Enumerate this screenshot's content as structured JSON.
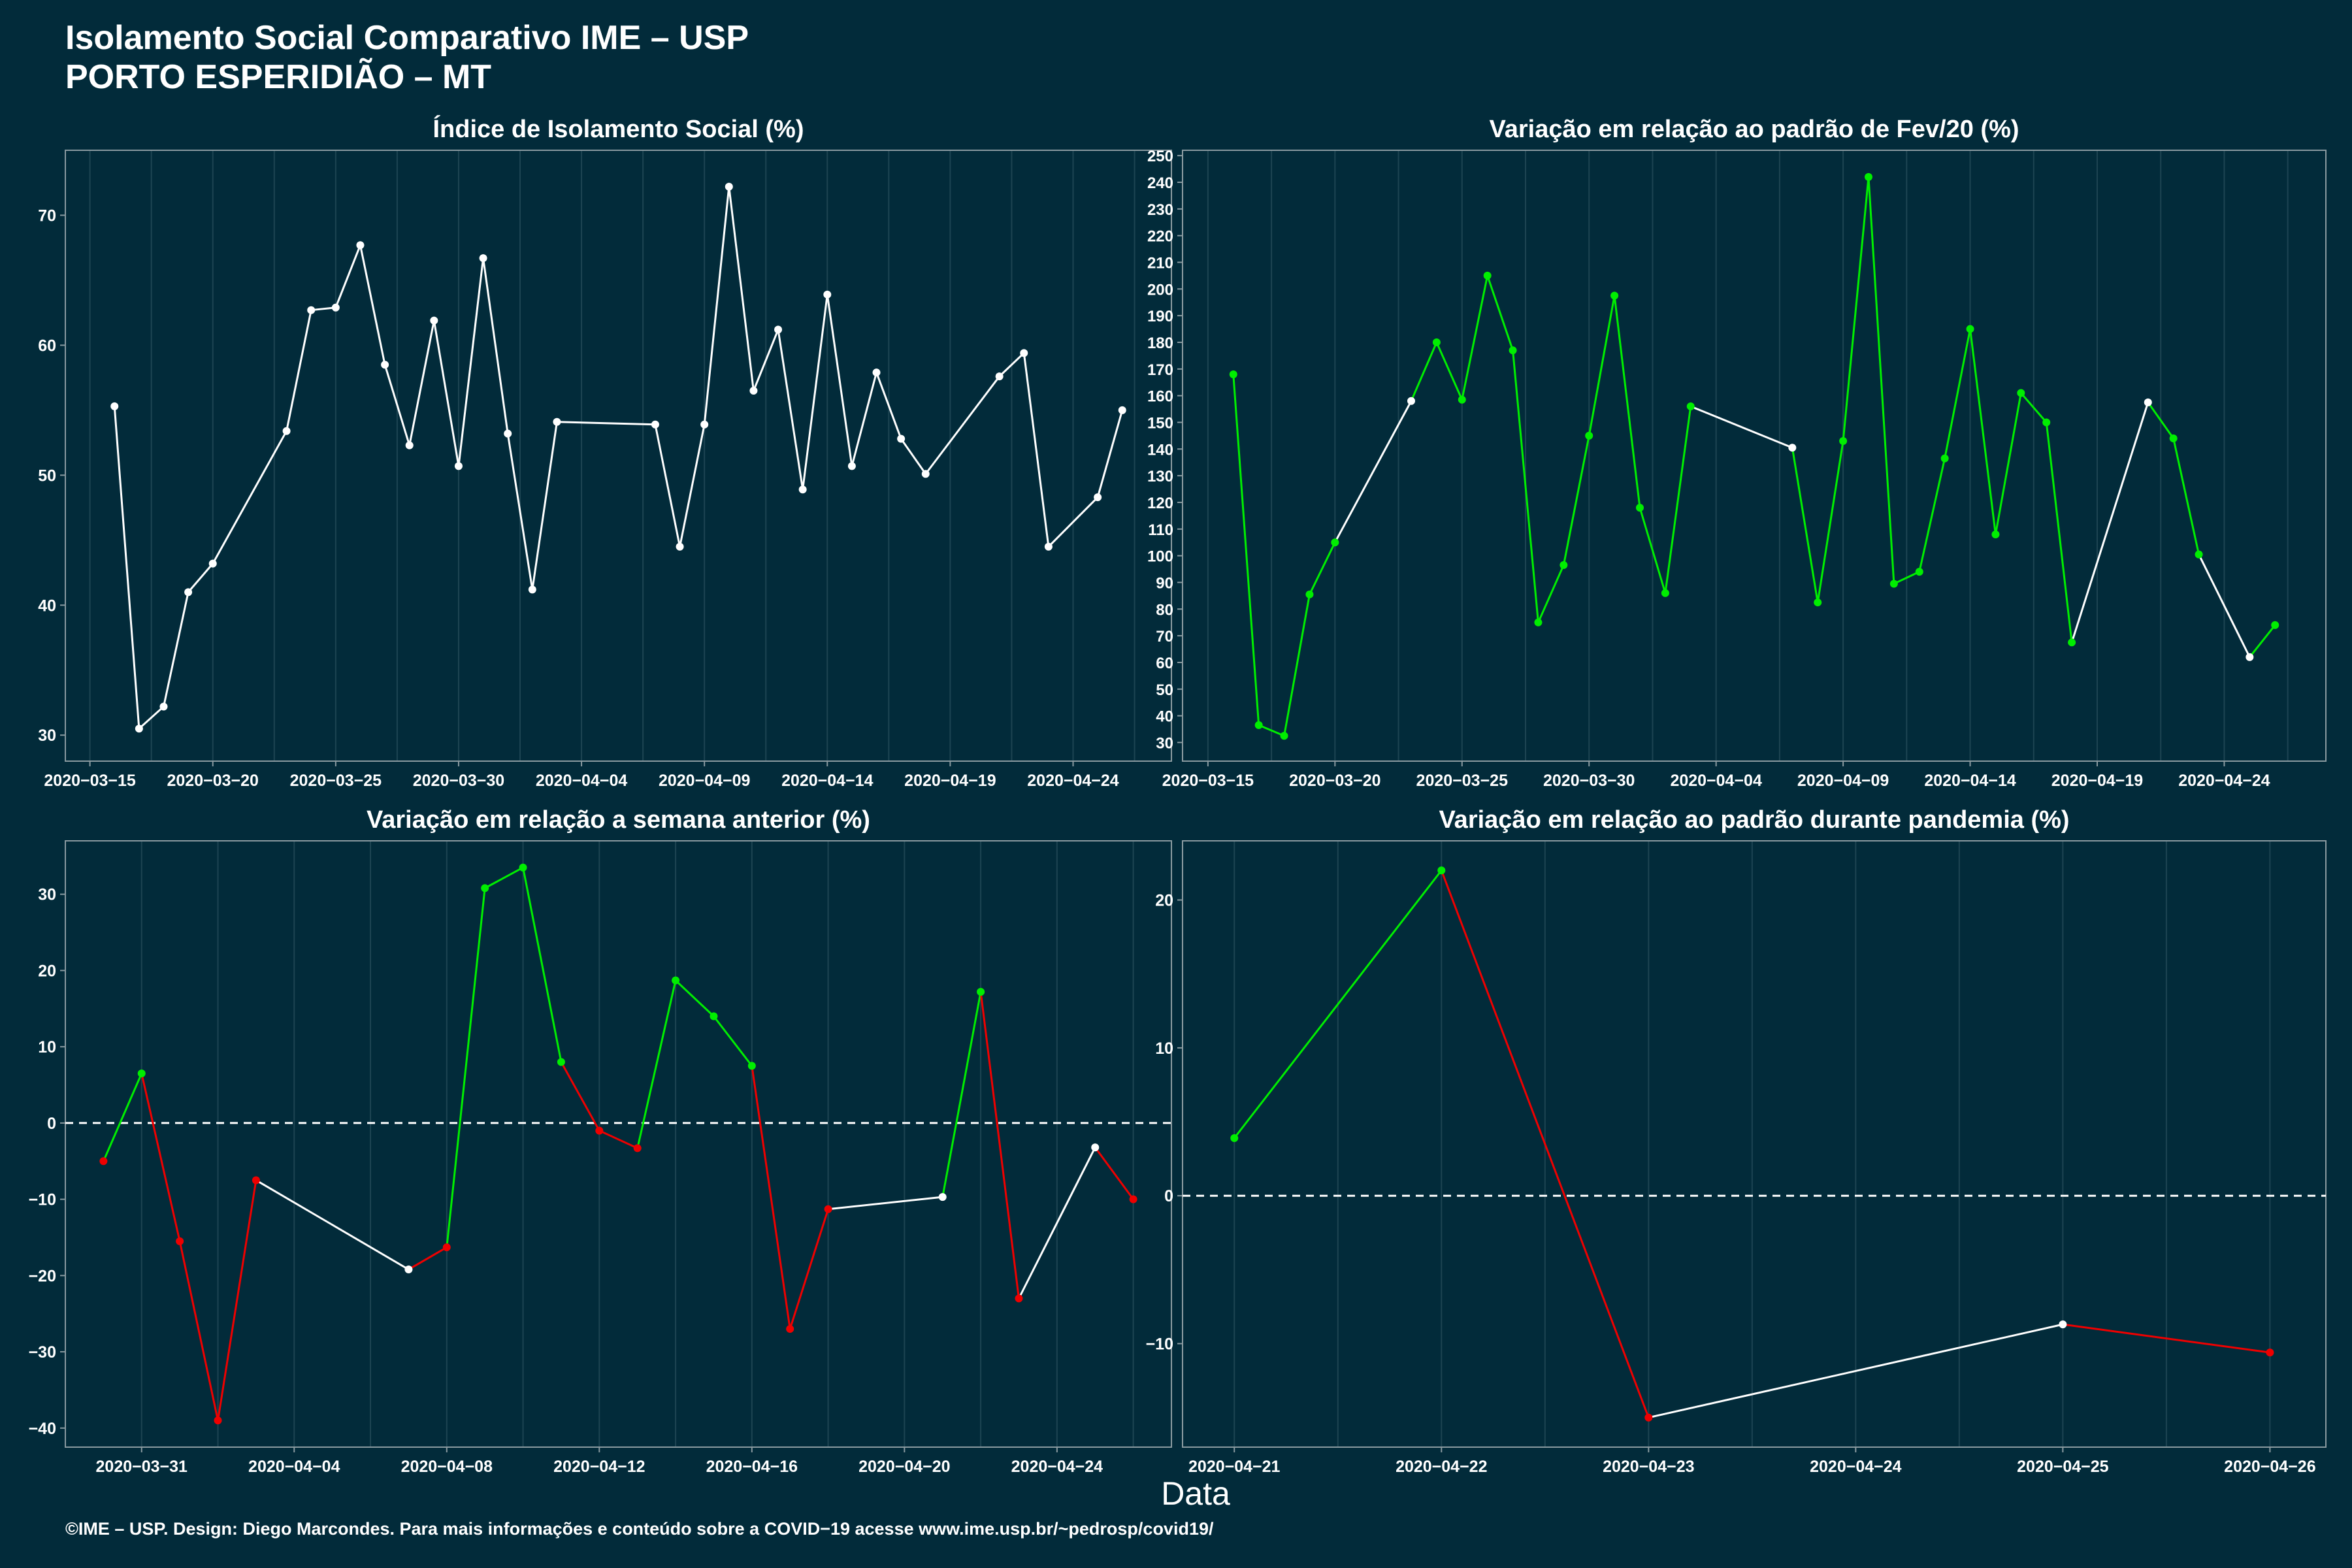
{
  "header": {
    "title": "Isolamento Social Comparativo IME – USP",
    "subtitle": "PORTO ESPERIDIÃO – MT"
  },
  "footer": {
    "credit": "©IME – USP. Design: Diego Marcondes. Para mais informações e conteúdo sobre a COVID−19 acesse www.ime.usp.br/~pedrosp/covid19/"
  },
  "colors": {
    "background": "#022b3a",
    "panel_border": "#8a9aa0",
    "gridline": "#1d4452",
    "line_white": "#ffffff",
    "line_green": "#00ee00",
    "line_red": "#ee0000"
  },
  "shared_xlabel": "Data",
  "chart_data": [
    {
      "id": "isolamento",
      "type": "line",
      "title": "Índice de Isolamento Social (%)",
      "xlabel": "",
      "ylabel": "",
      "x_type": "date",
      "xlim": [
        "2020-03-14",
        "2020-04-28"
      ],
      "ylim": [
        28,
        75
      ],
      "x_ticks": [
        "2020-03-15",
        "2020-03-20",
        "2020-03-25",
        "2020-03-30",
        "2020-04-04",
        "2020-04-09",
        "2020-04-14",
        "2020-04-19",
        "2020-04-24"
      ],
      "y_ticks": [
        30,
        40,
        50,
        60,
        70
      ],
      "grid": true,
      "dashed_zero": false,
      "points": [
        [
          "2020-03-16",
          55.3,
          "white"
        ],
        [
          "2020-03-17",
          30.5,
          "white"
        ],
        [
          "2020-03-18",
          32.2,
          "white"
        ],
        [
          "2020-03-19",
          41.0,
          "white"
        ],
        [
          "2020-03-20",
          43.2,
          "white"
        ],
        [
          "2020-03-23",
          53.4,
          "white"
        ],
        [
          "2020-03-24",
          62.7,
          "white"
        ],
        [
          "2020-03-25",
          62.9,
          "white"
        ],
        [
          "2020-03-26",
          67.7,
          "white"
        ],
        [
          "2020-03-27",
          58.5,
          "white"
        ],
        [
          "2020-03-28",
          52.3,
          "white"
        ],
        [
          "2020-03-29",
          61.9,
          "white"
        ],
        [
          "2020-03-30",
          50.7,
          "white"
        ],
        [
          "2020-03-31",
          66.7,
          "white"
        ],
        [
          "2020-04-01",
          53.2,
          "white"
        ],
        [
          "2020-04-02",
          41.2,
          "white"
        ],
        [
          "2020-04-03",
          54.1,
          "white"
        ],
        [
          "2020-04-07",
          53.9,
          "white"
        ],
        [
          "2020-04-08",
          44.5,
          "white"
        ],
        [
          "2020-04-09",
          53.9,
          "white"
        ],
        [
          "2020-04-10",
          72.2,
          "white"
        ],
        [
          "2020-04-11",
          56.5,
          "white"
        ],
        [
          "2020-04-12",
          61.2,
          "white"
        ],
        [
          "2020-04-13",
          48.9,
          "white"
        ],
        [
          "2020-04-14",
          63.9,
          "white"
        ],
        [
          "2020-04-15",
          50.7,
          "white"
        ],
        [
          "2020-04-16",
          57.9,
          "white"
        ],
        [
          "2020-04-17",
          52.8,
          "white"
        ],
        [
          "2020-04-18",
          50.1,
          "white"
        ],
        [
          "2020-04-21",
          57.6,
          "white"
        ],
        [
          "2020-04-22",
          59.4,
          "white"
        ],
        [
          "2020-04-23",
          44.5,
          "white"
        ],
        [
          "2020-04-25",
          48.3,
          "white"
        ],
        [
          "2020-04-26",
          55.0,
          "white"
        ]
      ]
    },
    {
      "id": "fev20",
      "type": "line",
      "title": "Variação em relação ao padrão de Fev/20 (%)",
      "xlabel": "",
      "ylabel": "",
      "x_type": "date",
      "xlim": [
        "2020-03-14",
        "2020-04-28"
      ],
      "ylim": [
        23,
        252
      ],
      "x_ticks": [
        "2020-03-15",
        "2020-03-20",
        "2020-03-25",
        "2020-03-30",
        "2020-04-04",
        "2020-04-09",
        "2020-04-14",
        "2020-04-19",
        "2020-04-24"
      ],
      "y_ticks": [
        30,
        40,
        50,
        60,
        70,
        80,
        90,
        100,
        110,
        120,
        130,
        140,
        150,
        160,
        170,
        180,
        190,
        200,
        210,
        220,
        230,
        240,
        250
      ],
      "grid": true,
      "dashed_zero": false,
      "points": [
        [
          "2020-03-16",
          168,
          "green"
        ],
        [
          "2020-03-17",
          36.5,
          "green"
        ],
        [
          "2020-03-18",
          32.5,
          "green"
        ],
        [
          "2020-03-19",
          85.5,
          "green"
        ],
        [
          "2020-03-20",
          105,
          "green"
        ],
        [
          "2020-03-23",
          158,
          "white"
        ],
        [
          "2020-03-24",
          180,
          "green"
        ],
        [
          "2020-03-25",
          158.5,
          "green"
        ],
        [
          "2020-03-26",
          205,
          "green"
        ],
        [
          "2020-03-27",
          177,
          "green"
        ],
        [
          "2020-03-28",
          75,
          "green"
        ],
        [
          "2020-03-29",
          96.5,
          "green"
        ],
        [
          "2020-03-30",
          145,
          "green"
        ],
        [
          "2020-03-31",
          197.5,
          "green"
        ],
        [
          "2020-04-01",
          118,
          "green"
        ],
        [
          "2020-04-02",
          86,
          "green"
        ],
        [
          "2020-04-03",
          156,
          "green"
        ],
        [
          "2020-04-07",
          140.5,
          "white"
        ],
        [
          "2020-04-08",
          82.5,
          "green"
        ],
        [
          "2020-04-09",
          143,
          "green"
        ],
        [
          "2020-04-10",
          242,
          "green"
        ],
        [
          "2020-04-11",
          89.5,
          "green"
        ],
        [
          "2020-04-12",
          94,
          "green"
        ],
        [
          "2020-04-13",
          136.5,
          "green"
        ],
        [
          "2020-04-14",
          185,
          "green"
        ],
        [
          "2020-04-15",
          108,
          "green"
        ],
        [
          "2020-04-16",
          161,
          "green"
        ],
        [
          "2020-04-17",
          150,
          "green"
        ],
        [
          "2020-04-18",
          67.5,
          "green"
        ],
        [
          "2020-04-21",
          157.5,
          "white"
        ],
        [
          "2020-04-22",
          144,
          "green"
        ],
        [
          "2020-04-23",
          100.5,
          "green"
        ],
        [
          "2020-04-25",
          62,
          "white"
        ],
        [
          "2020-04-26",
          74,
          "green"
        ]
      ]
    },
    {
      "id": "semana",
      "type": "line",
      "title": "Variação em relação a semana anterior (%)",
      "xlabel": "",
      "ylabel": "",
      "x_type": "date",
      "xlim": [
        "2020-03-29",
        "2020-04-27"
      ],
      "ylim": [
        -42.5,
        37
      ],
      "x_ticks": [
        "2020-03-31",
        "2020-04-04",
        "2020-04-08",
        "2020-04-12",
        "2020-04-16",
        "2020-04-20",
        "2020-04-24"
      ],
      "y_ticks": [
        -40,
        -30,
        -20,
        -10,
        0,
        10,
        20,
        30
      ],
      "grid": true,
      "dashed_zero": true,
      "points": [
        [
          "2020-03-30",
          -5.0,
          "red"
        ],
        [
          "2020-03-31",
          6.5,
          "green"
        ],
        [
          "2020-04-01",
          -15.5,
          "red"
        ],
        [
          "2020-04-02",
          -39.0,
          "red"
        ],
        [
          "2020-04-03",
          -7.5,
          "red"
        ],
        [
          "2020-04-07",
          -19.2,
          "white"
        ],
        [
          "2020-04-08",
          -16.3,
          "red"
        ],
        [
          "2020-04-09",
          30.8,
          "green"
        ],
        [
          "2020-04-10",
          33.5,
          "green"
        ],
        [
          "2020-04-11",
          8.0,
          "green"
        ],
        [
          "2020-04-12",
          -1.0,
          "red"
        ],
        [
          "2020-04-13",
          -3.3,
          "red"
        ],
        [
          "2020-04-14",
          18.7,
          "green"
        ],
        [
          "2020-04-15",
          14.0,
          "green"
        ],
        [
          "2020-04-16",
          7.5,
          "green"
        ],
        [
          "2020-04-17",
          -27.0,
          "red"
        ],
        [
          "2020-04-18",
          -11.3,
          "red"
        ],
        [
          "2020-04-21",
          -9.7,
          "white"
        ],
        [
          "2020-04-22",
          17.2,
          "green"
        ],
        [
          "2020-04-23",
          -23.0,
          "red"
        ],
        [
          "2020-04-25",
          -3.2,
          "white"
        ],
        [
          "2020-04-26",
          -10.0,
          "red"
        ]
      ]
    },
    {
      "id": "pandemia",
      "type": "line",
      "title": "Variação em relação ao padrão durante pandemia (%)",
      "xlabel": "",
      "ylabel": "",
      "x_type": "date",
      "xlim": [
        "2020-04-20.75",
        "2020-04-26.27"
      ],
      "ylim": [
        -17,
        24
      ],
      "x_ticks": [
        "2020-04-21",
        "2020-04-22",
        "2020-04-23",
        "2020-04-24",
        "2020-04-25",
        "2020-04-26"
      ],
      "y_ticks": [
        -10,
        0,
        10,
        20
      ],
      "grid": true,
      "dashed_zero": true,
      "points": [
        [
          "2020-04-21",
          3.9,
          "green"
        ],
        [
          "2020-04-22",
          22.0,
          "green"
        ],
        [
          "2020-04-23",
          -15.0,
          "red"
        ],
        [
          "2020-04-25",
          -8.7,
          "white"
        ],
        [
          "2020-04-26",
          -10.6,
          "red"
        ]
      ]
    }
  ]
}
